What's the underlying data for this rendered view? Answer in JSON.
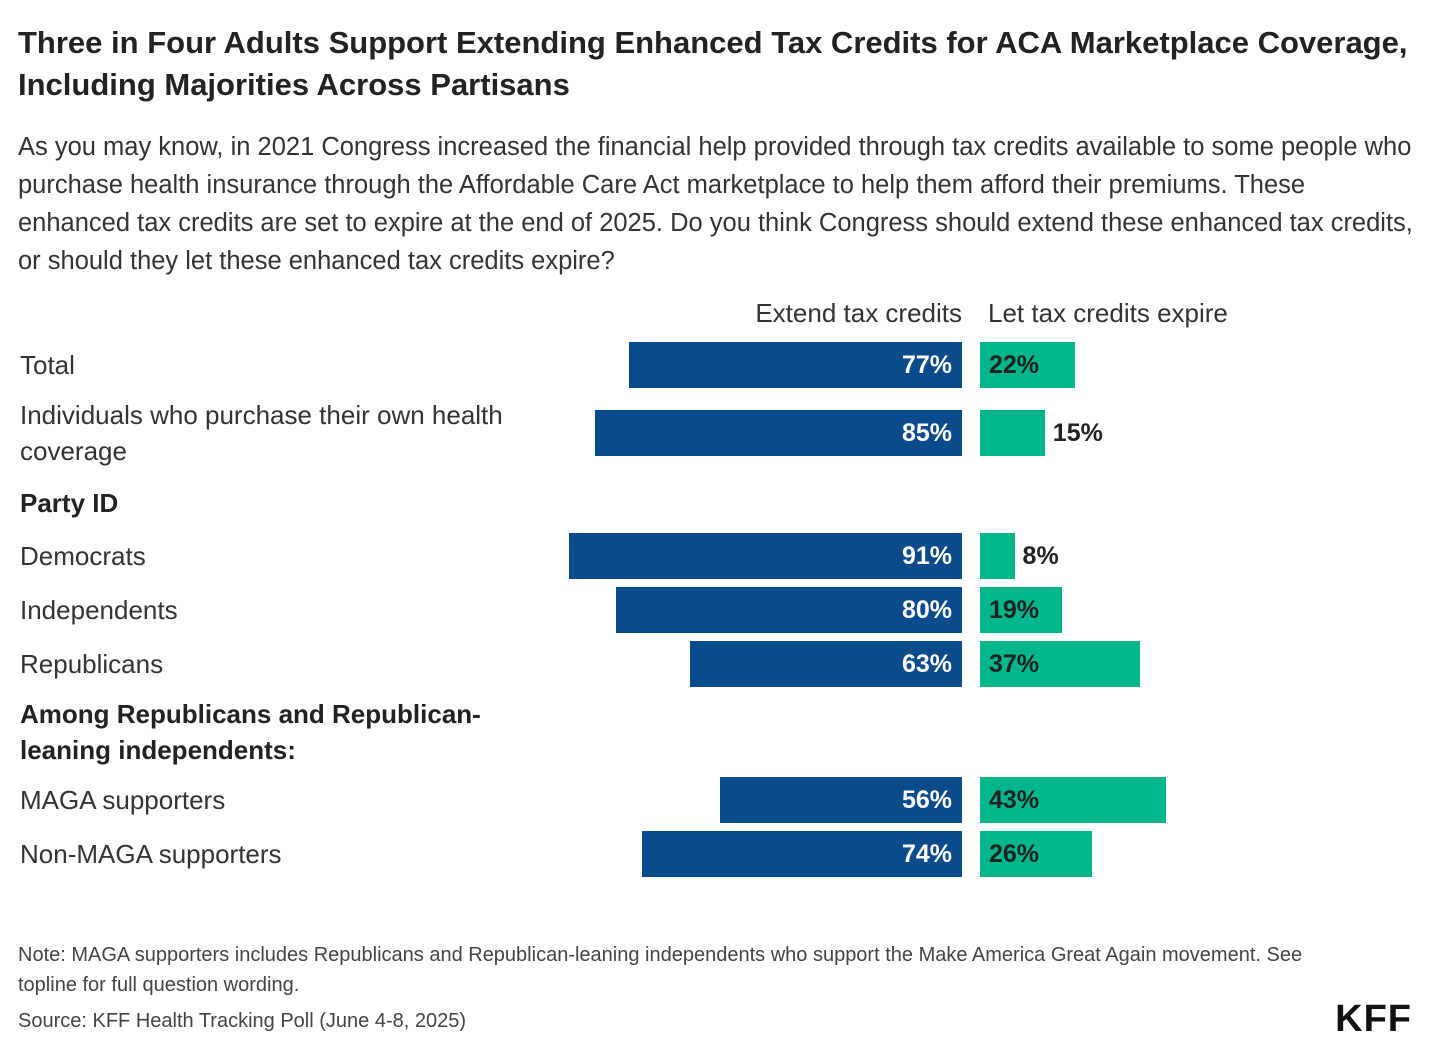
{
  "chart_data": {
    "type": "diverging_bar",
    "title": "Three in Four Adults Support Extending Enhanced Tax Credits for ACA Marketplace Coverage, Including Majorities Across Partisans",
    "subtitle": "As you may know, in 2021 Congress increased the financial help provided through tax credits available to some people who purchase health insurance through the Affordable Care Act marketplace to help them afford their premiums. These enhanced tax credits are set to expire at the end of 2025. Do you think Congress should extend these enhanced tax credits, or should they let these enhanced tax credits expire?",
    "categories": [
      "Total",
      "Individuals who purchase their own health coverage",
      "Party ID",
      "Democrats",
      "Independents",
      "Republicans",
      "Among Republicans and Republican-leaning independents:",
      "MAGA supporters",
      "Non-MAGA supporters"
    ],
    "series": [
      {
        "name": "Extend tax credits",
        "color": "#0b4a8b",
        "values": [
          77,
          85,
          null,
          91,
          80,
          63,
          null,
          56,
          74
        ],
        "value_labels": [
          "77%",
          "85%",
          null,
          "91%",
          "80%",
          "63%",
          null,
          "56%",
          "74%"
        ]
      },
      {
        "name": "Let tax credits expire",
        "color": "#00b68a",
        "values": [
          22,
          15,
          null,
          8,
          19,
          37,
          null,
          43,
          26
        ],
        "value_labels": [
          "22%",
          "15%",
          null,
          "8%",
          "19%",
          "37%",
          null,
          "43%",
          "26%"
        ]
      }
    ]
  },
  "footer": {
    "note": "Note: MAGA supporters includes Republicans and Republican-leaning independents who support the Make America Great Again movement. See topline for full question wording.",
    "source": "Source: KFF Health Tracking Poll (June 4-8, 2025)",
    "logo": "KFF"
  }
}
